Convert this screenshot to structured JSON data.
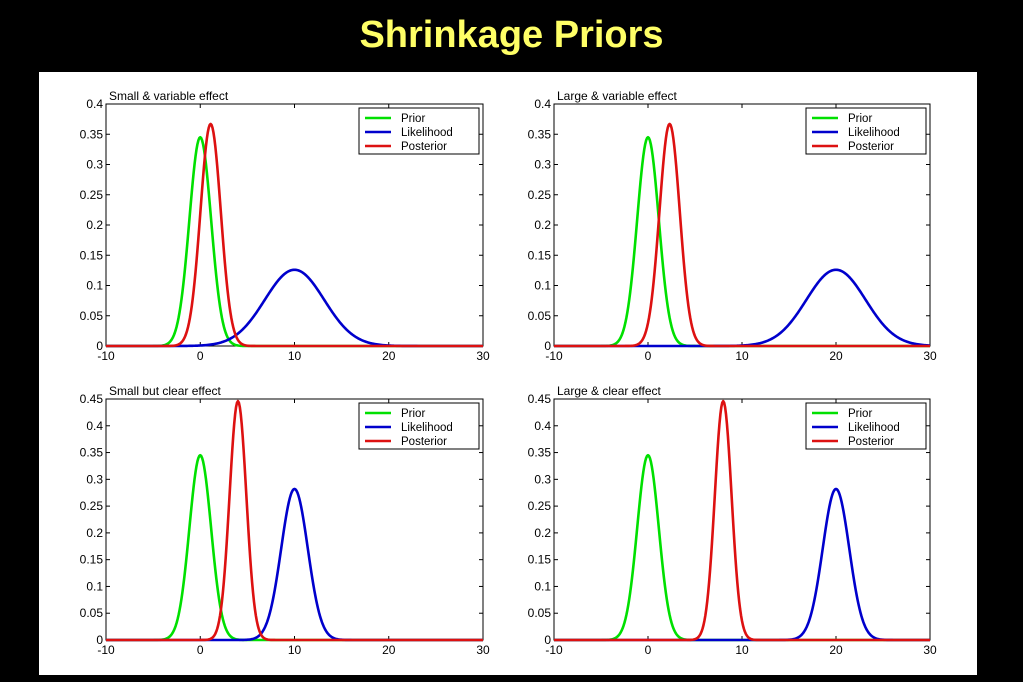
{
  "slide": {
    "title": "Shrinkage Priors"
  },
  "colors": {
    "prior": "#00e000",
    "likelihood": "#0000cc",
    "posterior": "#dd1111",
    "background": "#000000",
    "title": "#ffff66"
  },
  "chart_data": [
    {
      "type": "line",
      "title": "Small & variable effect",
      "xlim": [
        -10,
        30
      ],
      "ylim": [
        0,
        0.4
      ],
      "xticks": [
        "-10",
        "0",
        "10",
        "20",
        "30"
      ],
      "yticks": [
        "0",
        "0.05",
        "0.1",
        "0.15",
        "0.2",
        "0.25",
        "0.3",
        "0.35",
        "0.4"
      ],
      "legend": {
        "placement": "top-right",
        "entries": [
          "Prior",
          "Likelihood",
          "Posterior"
        ]
      },
      "series": [
        {
          "name": "Prior",
          "mean": 0,
          "sd": 1.15,
          "peak": 0.345
        },
        {
          "name": "Likelihood",
          "mean": 10,
          "sd": 3.15,
          "peak": 0.126
        },
        {
          "name": "Posterior",
          "mean": 1.1,
          "sd": 1.08,
          "peak": 0.367
        }
      ]
    },
    {
      "type": "line",
      "title": "Large & variable effect",
      "xlim": [
        -10,
        30
      ],
      "ylim": [
        0,
        0.4
      ],
      "xticks": [
        "-10",
        "0",
        "10",
        "20",
        "30"
      ],
      "yticks": [
        "0",
        "0.05",
        "0.1",
        "0.15",
        "0.2",
        "0.25",
        "0.3",
        "0.35",
        "0.4"
      ],
      "legend": {
        "placement": "top-right",
        "entries": [
          "Prior",
          "Likelihood",
          "Posterior"
        ]
      },
      "series": [
        {
          "name": "Prior",
          "mean": 0,
          "sd": 1.15,
          "peak": 0.345
        },
        {
          "name": "Likelihood",
          "mean": 20,
          "sd": 3.15,
          "peak": 0.126
        },
        {
          "name": "Posterior",
          "mean": 2.3,
          "sd": 1.08,
          "peak": 0.367
        }
      ]
    },
    {
      "type": "line",
      "title": "Small but clear effect",
      "xlim": [
        -10,
        30
      ],
      "ylim": [
        0,
        0.45
      ],
      "xticks": [
        "-10",
        "0",
        "10",
        "20",
        "30"
      ],
      "yticks": [
        "0",
        "0.05",
        "0.1",
        "0.15",
        "0.2",
        "0.25",
        "0.3",
        "0.35",
        "0.4",
        "0.45"
      ],
      "legend": {
        "placement": "top-right",
        "entries": [
          "Prior",
          "Likelihood",
          "Posterior"
        ]
      },
      "series": [
        {
          "name": "Prior",
          "mean": 0,
          "sd": 1.15,
          "peak": 0.345
        },
        {
          "name": "Likelihood",
          "mean": 10,
          "sd": 1.41,
          "peak": 0.282
        },
        {
          "name": "Posterior",
          "mean": 4,
          "sd": 0.89,
          "peak": 0.446
        }
      ]
    },
    {
      "type": "line",
      "title": "Large & clear effect",
      "xlim": [
        -10,
        30
      ],
      "ylim": [
        0,
        0.45
      ],
      "xticks": [
        "-10",
        "0",
        "10",
        "20",
        "30"
      ],
      "yticks": [
        "0",
        "0.05",
        "0.1",
        "0.15",
        "0.2",
        "0.25",
        "0.3",
        "0.35",
        "0.4",
        "0.45"
      ],
      "legend": {
        "placement": "top-right",
        "entries": [
          "Prior",
          "Likelihood",
          "Posterior"
        ]
      },
      "series": [
        {
          "name": "Prior",
          "mean": 0,
          "sd": 1.15,
          "peak": 0.345
        },
        {
          "name": "Likelihood",
          "mean": 20,
          "sd": 1.41,
          "peak": 0.282
        },
        {
          "name": "Posterior",
          "mean": 8,
          "sd": 0.89,
          "peak": 0.446
        }
      ]
    }
  ]
}
